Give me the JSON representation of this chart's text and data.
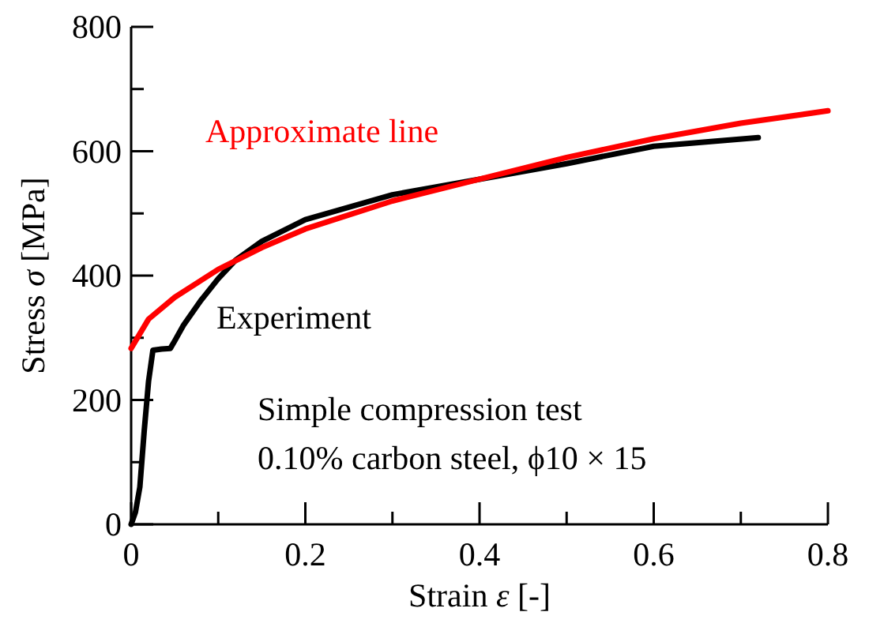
{
  "chart_data": {
    "type": "line",
    "xlabel": "Strain ε [-]",
    "ylabel": "Stress σ [MPa]",
    "xlim": [
      0,
      0.8
    ],
    "ylim": [
      0,
      800
    ],
    "xticks": [
      0,
      {
        "value": 0.1,
        "label": null
      },
      0.2,
      {
        "value": 0.3,
        "label": null
      },
      0.4,
      {
        "value": 0.5,
        "label": null
      },
      0.6,
      {
        "value": 0.7,
        "label": null
      },
      0.8
    ],
    "yticks": [
      0,
      {
        "value": 100,
        "label": null
      },
      200,
      {
        "value": 300,
        "label": null
      },
      400,
      {
        "value": 500,
        "label": null
      },
      600,
      {
        "value": 700,
        "label": null
      },
      800
    ],
    "grid": false,
    "marker": "none",
    "line_style": "solid",
    "annotations": [
      "Simple compression test",
      "0.10% carbon steel, ϕ10 × 15"
    ],
    "series": [
      {
        "name": "Experiment",
        "color": "#000000",
        "x": [
          0,
          0.005,
          0.01,
          0.015,
          0.02,
          0.025,
          0.035,
          0.045,
          0.05,
          0.06,
          0.08,
          0.1,
          0.12,
          0.15,
          0.2,
          0.3,
          0.4,
          0.5,
          0.6,
          0.72
        ],
        "values": [
          0,
          20,
          60,
          150,
          230,
          280,
          282,
          283,
          295,
          320,
          360,
          395,
          425,
          455,
          490,
          530,
          555,
          580,
          608,
          622
        ]
      },
      {
        "name": "Approximate line",
        "color": "#ff0000",
        "x": [
          0,
          0.02,
          0.05,
          0.1,
          0.15,
          0.2,
          0.3,
          0.4,
          0.5,
          0.6,
          0.7,
          0.8
        ],
        "values": [
          283,
          330,
          365,
          410,
          445,
          475,
          520,
          555,
          590,
          620,
          645,
          665
        ]
      }
    ]
  }
}
